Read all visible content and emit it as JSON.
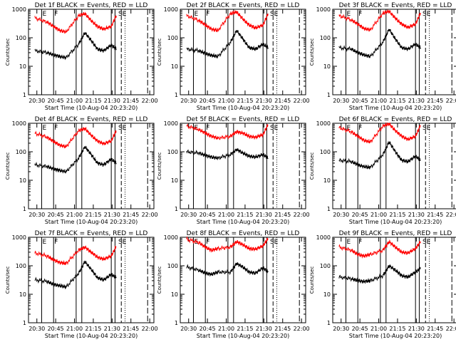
{
  "figure": {
    "shared": {
      "type": "line",
      "ylabel": "Counts/sec",
      "xlabel": "Start Time (10-Aug-04 20:23:20)",
      "x_ticks": [
        "20:30",
        "20:45",
        "21:00",
        "21:15",
        "21:30",
        "21:45",
        "22:00"
      ],
      "y_ticks": [
        "1",
        "10",
        "100",
        "1000"
      ],
      "y_scale": "log",
      "ylim": [
        1,
        1000
      ],
      "xlim_minutes_after_20_23_20": [
        0,
        100
      ],
      "markers": [
        "E",
        "F",
        "SE"
      ],
      "series_colors": {
        "Events": "#000000",
        "LLD": "#ff0000"
      }
    }
  },
  "chart_data": [
    {
      "type": "line",
      "title": "Det 1f BLACK = Events, RED = LLD",
      "x": [
        5,
        15,
        20,
        25,
        30,
        40,
        45,
        50,
        55,
        60,
        66,
        70
      ],
      "series": [
        {
          "name": "Events",
          "color": "#000000",
          "values": [
            35,
            30,
            25,
            22,
            20,
            60,
            150,
            80,
            40,
            35,
            55,
            40
          ]
        },
        {
          "name": "LLD",
          "color": "#ff0000",
          "values": [
            500,
            350,
            250,
            180,
            160,
            600,
            700,
            400,
            250,
            200,
            250,
            600
          ]
        }
      ]
    },
    {
      "type": "line",
      "title": "Det 2f BLACK = Events, RED = LLD",
      "x": [
        5,
        15,
        20,
        25,
        30,
        40,
        45,
        50,
        55,
        60,
        66,
        70
      ],
      "series": [
        {
          "name": "Events",
          "color": "#000000",
          "values": [
            40,
            35,
            28,
            24,
            22,
            70,
            180,
            90,
            45,
            40,
            60,
            45
          ]
        },
        {
          "name": "LLD",
          "color": "#ff0000",
          "values": [
            600,
            400,
            280,
            200,
            180,
            700,
            800,
            450,
            280,
            220,
            280,
            700
          ]
        }
      ]
    },
    {
      "type": "line",
      "title": "Det 3f BLACK = Events, RED = LLD",
      "x": [
        5,
        15,
        20,
        25,
        30,
        40,
        45,
        50,
        55,
        60,
        66,
        70
      ],
      "series": [
        {
          "name": "Events",
          "color": "#000000",
          "values": [
            45,
            40,
            30,
            25,
            22,
            70,
            200,
            90,
            45,
            40,
            60,
            45
          ]
        },
        {
          "name": "LLD",
          "color": "#ff0000",
          "values": [
            600,
            420,
            300,
            210,
            190,
            720,
            850,
            480,
            300,
            230,
            300,
            750
          ]
        }
      ]
    },
    {
      "type": "line",
      "title": "Det 4f BLACK = Events, RED = LLD",
      "x": [
        5,
        15,
        20,
        25,
        30,
        40,
        45,
        50,
        55,
        60,
        66,
        70
      ],
      "series": [
        {
          "name": "Events",
          "color": "#000000",
          "values": [
            35,
            30,
            25,
            22,
            20,
            60,
            150,
            80,
            40,
            35,
            55,
            40
          ]
        },
        {
          "name": "LLD",
          "color": "#ff0000",
          "values": [
            450,
            320,
            230,
            170,
            150,
            550,
            650,
            380,
            240,
            190,
            240,
            550
          ]
        }
      ]
    },
    {
      "type": "line",
      "title": "Det 5f BLACK = Events, RED = LLD",
      "x": [
        5,
        15,
        20,
        25,
        30,
        40,
        45,
        50,
        55,
        60,
        66,
        70
      ],
      "series": [
        {
          "name": "Events",
          "color": "#000000",
          "values": [
            100,
            90,
            75,
            65,
            60,
            80,
            120,
            90,
            70,
            65,
            80,
            60
          ]
        },
        {
          "name": "LLD",
          "color": "#ff0000",
          "values": [
            800,
            600,
            450,
            350,
            300,
            350,
            500,
            450,
            350,
            320,
            400,
            900
          ]
        }
      ]
    },
    {
      "type": "line",
      "title": "Det 6f BLACK = Events, RED = LLD",
      "x": [
        5,
        15,
        20,
        25,
        30,
        40,
        45,
        50,
        55,
        60,
        66,
        70
      ],
      "series": [
        {
          "name": "Events",
          "color": "#000000",
          "values": [
            50,
            45,
            35,
            30,
            28,
            80,
            220,
            100,
            50,
            45,
            70,
            50
          ]
        },
        {
          "name": "LLD",
          "color": "#ff0000",
          "values": [
            700,
            500,
            350,
            250,
            220,
            800,
            950,
            550,
            350,
            270,
            350,
            850
          ]
        }
      ]
    },
    {
      "type": "line",
      "title": "Det 7f BLACK = Events, RED = LLD",
      "x": [
        5,
        15,
        20,
        25,
        30,
        40,
        45,
        50,
        55,
        60,
        66,
        70
      ],
      "series": [
        {
          "name": "Events",
          "color": "#000000",
          "values": [
            32,
            28,
            22,
            20,
            18,
            55,
            140,
            75,
            38,
            32,
            50,
            38
          ]
        },
        {
          "name": "LLD",
          "color": "#ff0000",
          "values": [
            280,
            220,
            160,
            130,
            120,
            350,
            450,
            300,
            200,
            170,
            220,
            480
          ]
        }
      ]
    },
    {
      "type": "line",
      "title": "Det 8f BLACK = Events, RED = LLD",
      "x": [
        5,
        15,
        20,
        25,
        30,
        40,
        45,
        50,
        55,
        60,
        66,
        70
      ],
      "series": [
        {
          "name": "Events",
          "color": "#000000",
          "values": [
            90,
            70,
            55,
            50,
            60,
            60,
            120,
            90,
            60,
            55,
            85,
            60
          ]
        },
        {
          "name": "LLD",
          "color": "#ff0000",
          "values": [
            850,
            650,
            450,
            350,
            400,
            450,
            700,
            550,
            400,
            380,
            500,
            900
          ]
        }
      ]
    },
    {
      "type": "line",
      "title": "Det 9f BLACK = Events, RED = LLD",
      "x": [
        5,
        15,
        20,
        25,
        30,
        40,
        45,
        50,
        55,
        60,
        66,
        70
      ],
      "series": [
        {
          "name": "Events",
          "color": "#000000",
          "values": [
            40,
            35,
            30,
            28,
            30,
            45,
            100,
            70,
            45,
            40,
            60,
            80
          ]
        },
        {
          "name": "LLD",
          "color": "#ff0000",
          "values": [
            450,
            350,
            250,
            220,
            250,
            350,
            700,
            450,
            300,
            280,
            400,
            700
          ]
        }
      ]
    }
  ]
}
